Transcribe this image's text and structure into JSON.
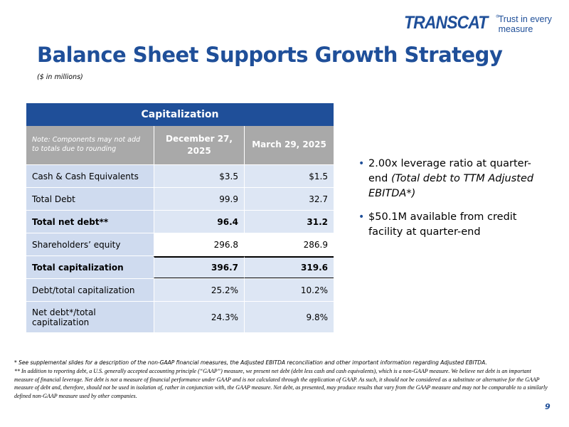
{
  "logo": {
    "word": "TRANSCAT",
    "tm": "®",
    "tagline": "Trust in every measure"
  },
  "title": "Balance Sheet Supports Growth Strategy",
  "subtitle": "($ in millions)",
  "table": {
    "header": "Capitalization",
    "note": "Note: Components may not add to totals due to rounding",
    "col1": "December 27, 2025",
    "col2": "March 29, 2025",
    "rows": [
      {
        "label": "Cash & Cash Equivalents",
        "v1": "$3.5",
        "v2": "$1.5"
      },
      {
        "label": "Total Debt",
        "v1": "99.9",
        "v2": "32.7"
      },
      {
        "label": "Total net debt**",
        "v1": "96.4",
        "v2": "31.2"
      },
      {
        "label": "Shareholders’ equity",
        "v1": "296.8",
        "v2": "286.9"
      },
      {
        "label": "Total capitalization",
        "v1": "396.7",
        "v2": "319.6"
      },
      {
        "label": "Debt/total capitalization",
        "v1": "25.2%",
        "v2": "10.2%"
      },
      {
        "label": "Net debt*/total capitalization",
        "v1": "24.3%",
        "v2": "9.8%"
      }
    ]
  },
  "bullets": {
    "b1_main": "2.00x leverage ratio at quarter-end ",
    "b1_italic": "(Total debt to TTM Adjusted EBITDA*)",
    "b2": "$50.1M available from credit facility at quarter-end"
  },
  "footnotes": {
    "f1": "* See supplemental slides for a description of the non-GAAP financial measures, the Adjusted EBITDA reconciliation and other important information regarding Adjusted EBITDA.",
    "f2": "** In addition to reporting debt, a U.S. generally accepted accounting principle (“GAAP”) measure, we present net debt (debt less cash and cash equivalents), which is a non-GAAP measure. We believe net debt is an important measure of financial leverage. Net debt is not a measure of financial performance under GAAP and is not calculated through the application of GAAP. As such, it should not be considered as a substitute or alternative for the GAAP measure of debt and, therefore, should not be used in isolation of, rather in conjunction with, the GAAP measure. Net debt, as presented, may produce results that vary from the GAAP measure and may not be comparable to a similarly defined non-GAAP measure used by other companies."
  },
  "page_number": "9"
}
